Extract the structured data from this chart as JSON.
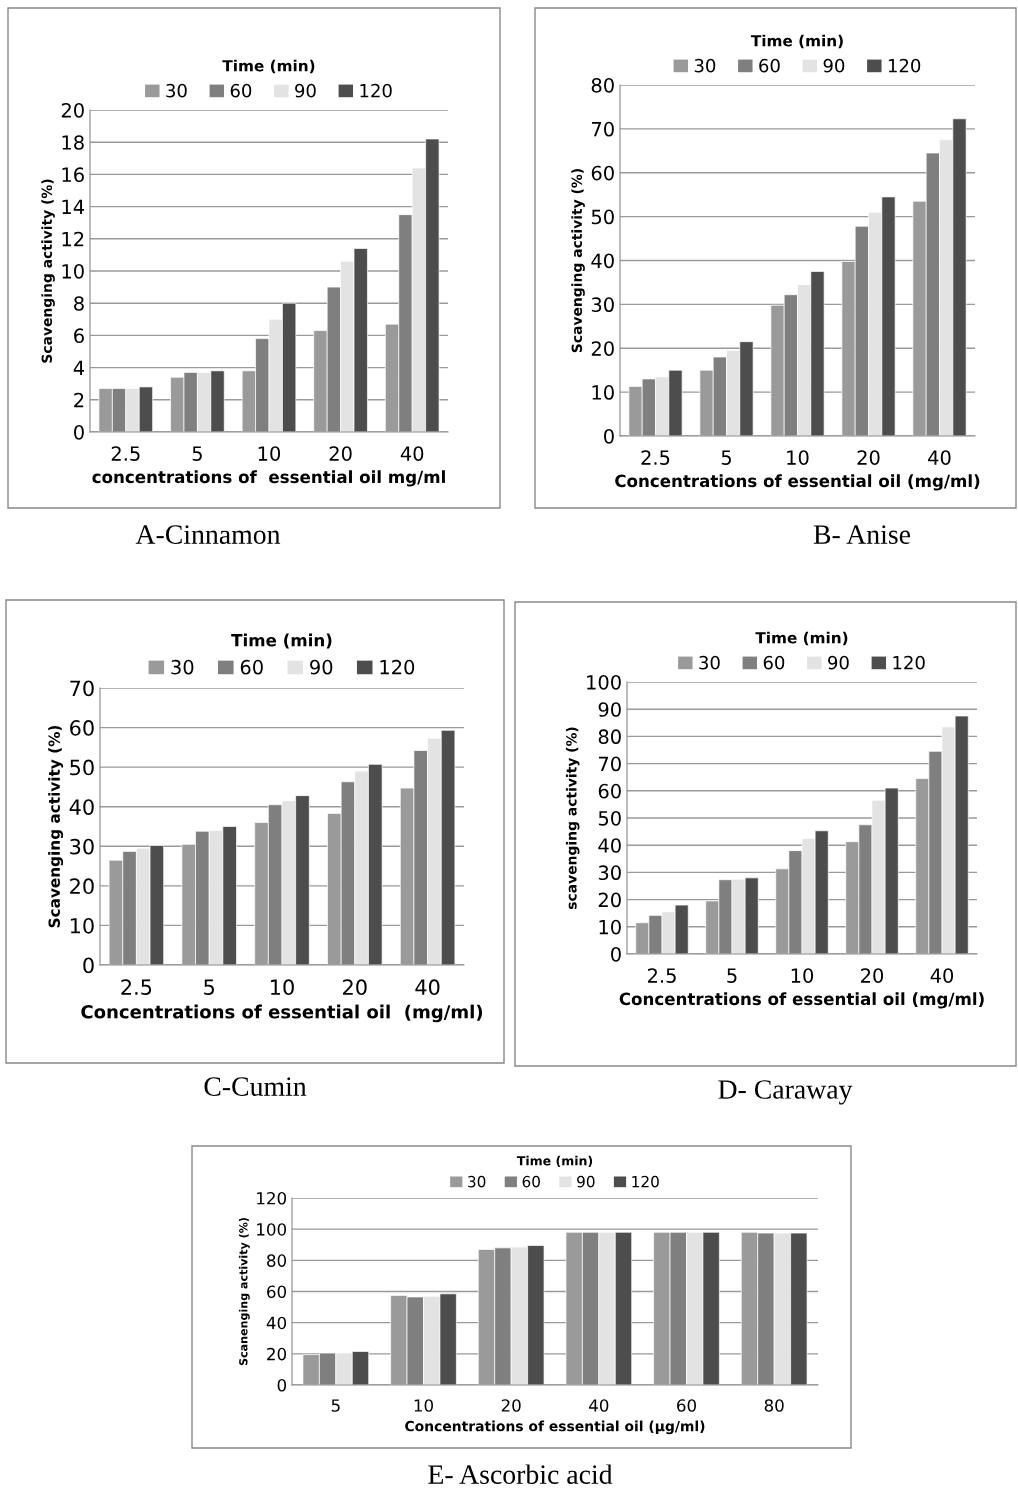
{
  "chart_data": [
    {
      "type": "bar",
      "title": "A-Cinnamon",
      "xlabel": "concentrations of  essential oil mg/ml",
      "ylabel": "Scavenging activity (%)",
      "legend_title": "Time (min)",
      "categories": [
        "2.5",
        "5",
        "10",
        "20",
        "40"
      ],
      "ylim": [
        0,
        20
      ],
      "yticks": [
        0,
        2,
        4,
        6,
        8,
        10,
        12,
        14,
        16,
        18,
        20
      ],
      "grid": "y",
      "legend": "top",
      "series": [
        {
          "name": "30",
          "color": "#9a9a9a",
          "values": [
            2.7,
            3.4,
            3.8,
            6.3,
            6.7
          ]
        },
        {
          "name": "60",
          "color": "#7f7f7f",
          "values": [
            2.7,
            3.7,
            5.8,
            9.0,
            13.5
          ]
        },
        {
          "name": "90",
          "color": "#e3e3e3",
          "values": [
            2.7,
            3.7,
            7.0,
            10.6,
            16.4
          ]
        },
        {
          "name": "120",
          "color": "#4d4d4d",
          "values": [
            2.8,
            3.8,
            8.0,
            11.4,
            18.2
          ]
        }
      ]
    },
    {
      "type": "bar",
      "title": "B- Anise",
      "xlabel": "Concentrations of essential oil (mg/ml)",
      "ylabel": "Scavenging activity (%)",
      "legend_title": "Time (min)",
      "categories": [
        "2.5",
        "5",
        "10",
        "20",
        "40"
      ],
      "ylim": [
        0,
        80
      ],
      "yticks": [
        0,
        10,
        20,
        30,
        40,
        50,
        60,
        70,
        80
      ],
      "grid": "y",
      "legend": "top",
      "series": [
        {
          "name": "30",
          "color": "#9a9a9a",
          "values": [
            11.3,
            15,
            29.8,
            39.8,
            53.5
          ]
        },
        {
          "name": "60",
          "color": "#7f7f7f",
          "values": [
            13,
            18,
            32.2,
            47.8,
            64.5
          ]
        },
        {
          "name": "90",
          "color": "#e3e3e3",
          "values": [
            13.5,
            19.5,
            34.5,
            51,
            67.5
          ]
        },
        {
          "name": "120",
          "color": "#4d4d4d",
          "values": [
            15,
            21.5,
            37.5,
            54.5,
            72.3
          ]
        }
      ]
    },
    {
      "type": "bar",
      "title": "C-Cumin",
      "xlabel": "Concentrations of essential oil  (mg/ml)",
      "ylabel": "Scavenging activity (%)",
      "legend_title": "Time (min)",
      "categories": [
        "2.5",
        "5",
        "10",
        "20",
        "40"
      ],
      "ylim": [
        0,
        70
      ],
      "yticks": [
        0,
        10,
        20,
        30,
        40,
        50,
        60,
        70
      ],
      "grid": "y",
      "legend": "top",
      "series": [
        {
          "name": "30",
          "color": "#9a9a9a",
          "values": [
            26.5,
            30.5,
            36,
            38.3,
            44.7
          ]
        },
        {
          "name": "60",
          "color": "#7f7f7f",
          "values": [
            28.7,
            33.8,
            40.5,
            46.3,
            54.2
          ]
        },
        {
          "name": "90",
          "color": "#e3e3e3",
          "values": [
            29.5,
            34,
            41.5,
            49,
            57.3
          ]
        },
        {
          "name": "120",
          "color": "#4d4d4d",
          "values": [
            30.2,
            35,
            42.8,
            50.7,
            59.3
          ]
        }
      ]
    },
    {
      "type": "bar",
      "title": "D- Caraway",
      "xlabel": "Concentrations of essential oil (mg/ml)",
      "ylabel": "scavenging activity (%)",
      "legend_title": "Time (min)",
      "categories": [
        "2.5",
        "5",
        "10",
        "20",
        "40"
      ],
      "ylim": [
        0,
        100
      ],
      "yticks": [
        0,
        10,
        20,
        30,
        40,
        50,
        60,
        70,
        80,
        90,
        100
      ],
      "grid": "y",
      "legend": "top",
      "series": [
        {
          "name": "30",
          "color": "#9a9a9a",
          "values": [
            11.5,
            19.5,
            31.3,
            41.3,
            64.5
          ]
        },
        {
          "name": "60",
          "color": "#7f7f7f",
          "values": [
            14.2,
            27.3,
            38,
            47.5,
            74.5
          ]
        },
        {
          "name": "90",
          "color": "#e3e3e3",
          "values": [
            15.5,
            27.5,
            42.5,
            56.5,
            83.5
          ]
        },
        {
          "name": "120",
          "color": "#4d4d4d",
          "values": [
            18,
            28,
            45.3,
            61,
            87.5
          ]
        }
      ]
    },
    {
      "type": "bar",
      "title": "E- Ascorbic acid",
      "xlabel": "Concentrations of essential oil (µg/ml)",
      "ylabel": "Scanenging activity (%)",
      "legend_title": "Time (min)",
      "categories": [
        "5",
        "10",
        "20",
        "40",
        "60",
        "80"
      ],
      "ylim": [
        0,
        120
      ],
      "yticks": [
        0,
        20,
        40,
        60,
        80,
        100,
        120
      ],
      "grid": "y",
      "legend": "top",
      "series": [
        {
          "name": "30",
          "color": "#9a9a9a",
          "values": [
            19.5,
            57.5,
            87,
            98,
            98,
            98
          ]
        },
        {
          "name": "60",
          "color": "#7f7f7f",
          "values": [
            20.5,
            56.5,
            88,
            98,
            98,
            97.5
          ]
        },
        {
          "name": "90",
          "color": "#e3e3e3",
          "values": [
            20.5,
            57,
            88.5,
            98,
            98,
            97.5
          ]
        },
        {
          "name": "120",
          "color": "#4d4d4d",
          "values": [
            21.5,
            58.5,
            89.5,
            98,
            98,
            97.5
          ]
        }
      ]
    }
  ]
}
